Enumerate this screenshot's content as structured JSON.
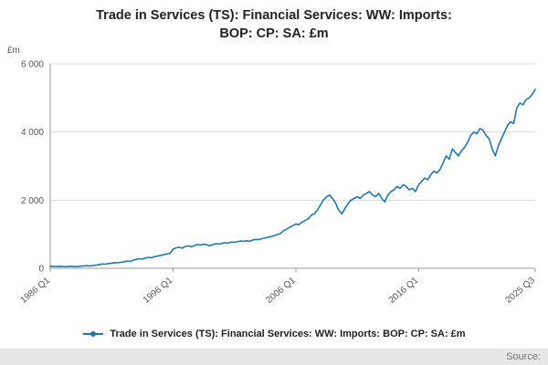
{
  "title_lines": {
    "line1": "Trade in Services (TS): Financial Services: WW: Imports:",
    "line2": "BOP: CP: SA: £m"
  },
  "footer": {
    "source_label": "Source:"
  },
  "legend": {
    "label": "Trade in Services (TS): Financial Services: WW: Imports: BOP: CP: SA: £m"
  },
  "chart_data": {
    "type": "line",
    "title": "Trade in Services (TS): Financial Services: WW: Imports: BOP: CP: SA: £m",
    "ylabel": "£m",
    "xlabel": "",
    "ylim": [
      0,
      6000
    ],
    "grid": true,
    "legend_position": "bottom",
    "line_color": "#1f77b4",
    "axis_color": "#999999",
    "grid_color": "#d9d9d9",
    "tick_text_color": "#555555",
    "x_start": "1986 Q1",
    "x_end": "2025 Q3",
    "frequency": "quarterly",
    "y_ticks": [
      {
        "value": 0,
        "label": "0"
      },
      {
        "value": 2000,
        "label": "2 000"
      },
      {
        "value": 4000,
        "label": "4 000"
      },
      {
        "value": 6000,
        "label": "6 000"
      }
    ],
    "x_ticks": [
      {
        "index": 0,
        "label": "1986 Q1"
      },
      {
        "index": 40,
        "label": "1996 Q1"
      },
      {
        "index": 80,
        "label": "2006 Q1"
      },
      {
        "index": 120,
        "label": "2016 Q1"
      },
      {
        "index": 158,
        "label": "2025 Q3"
      }
    ],
    "values": [
      60,
      55,
      50,
      58,
      52,
      48,
      55,
      60,
      45,
      50,
      62,
      70,
      75,
      68,
      80,
      95,
      110,
      125,
      120,
      140,
      150,
      165,
      160,
      175,
      190,
      210,
      200,
      230,
      260,
      280,
      270,
      300,
      320,
      310,
      340,
      360,
      380,
      400,
      420,
      440,
      560,
      600,
      620,
      590,
      640,
      660,
      630,
      670,
      700,
      680,
      710,
      690,
      660,
      700,
      720,
      710,
      730,
      750,
      740,
      770,
      760,
      780,
      800,
      790,
      810,
      790,
      830,
      850,
      840,
      870,
      890,
      910,
      930,
      960,
      990,
      1020,
      1100,
      1150,
      1200,
      1250,
      1300,
      1280,
      1350,
      1400,
      1450,
      1550,
      1600,
      1700,
      1850,
      2000,
      2100,
      2150,
      2050,
      1900,
      1700,
      1600,
      1750,
      1900,
      2000,
      2050,
      2100,
      2050,
      2150,
      2200,
      2250,
      2150,
      2100,
      2200,
      2050,
      1950,
      2150,
      2250,
      2300,
      2400,
      2350,
      2450,
      2400,
      2300,
      2350,
      2250,
      2450,
      2550,
      2650,
      2600,
      2750,
      2850,
      2800,
      2900,
      3100,
      3300,
      3200,
      3500,
      3400,
      3300,
      3450,
      3550,
      3700,
      3900,
      4000,
      3950,
      4100,
      4050,
      3900,
      3800,
      3500,
      3300,
      3600,
      3800,
      4000,
      4200,
      4300,
      4250,
      4700,
      4850,
      4800,
      4950,
      5000,
      5100,
      5250
    ]
  }
}
